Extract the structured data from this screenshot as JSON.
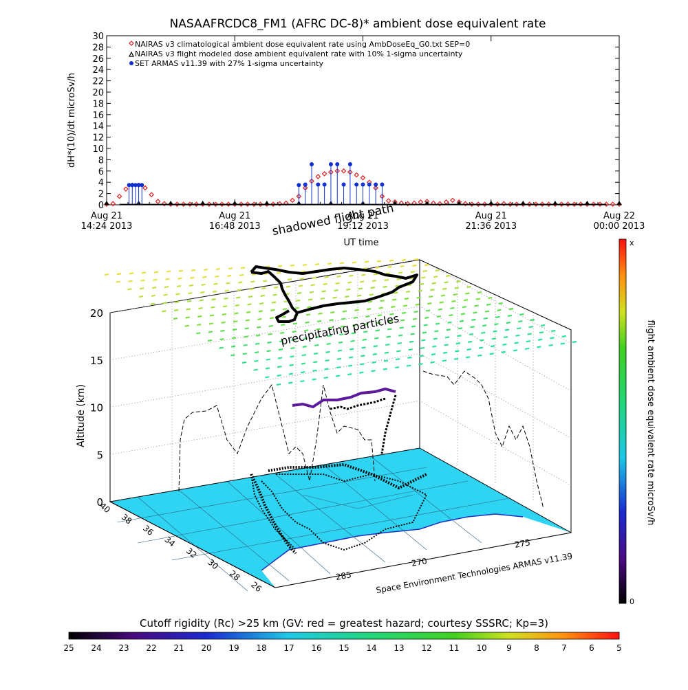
{
  "chart_data": [
    {
      "type": "scatter",
      "title": "NASAAFRCDC8_FM1 (AFRC DC-8)* ambient dose equivalent rate",
      "ylabel": "dH*(10)/dt microSv/h",
      "xlabel": "UT time",
      "ylim": [
        0,
        30
      ],
      "yticks": [
        0,
        2,
        4,
        6,
        8,
        10,
        12,
        14,
        16,
        18,
        20,
        22,
        24,
        26,
        28,
        30
      ],
      "xticks": [
        {
          "top": "Aug 21",
          "bottom": "14:24 2013"
        },
        {
          "top": "Aug 21",
          "bottom": "16:48 2013"
        },
        {
          "top": "Aug 21",
          "bottom": "19:12 2013"
        },
        {
          "top": "Aug 21",
          "bottom": "21:36 2013"
        },
        {
          "top": "Aug 22",
          "bottom": "00:00 2013"
        }
      ],
      "legend_placement": "top-left",
      "series": [
        {
          "name": "NAIRAS v3 climatological ambient dose equivalent rate using AmbDoseEq_G0.txt SEP=0",
          "marker": "diamond",
          "color": "#e02020",
          "x": [
            0.0,
            0.1,
            0.2,
            0.3,
            0.4,
            0.5,
            0.6,
            0.7,
            0.8,
            0.9,
            1.0,
            1.1,
            1.2,
            1.3,
            1.4,
            1.5,
            1.6,
            1.7,
            1.8,
            1.9,
            2.0,
            2.1,
            2.2,
            2.3,
            2.4,
            2.5,
            2.6,
            2.7,
            2.8,
            2.9,
            3.0,
            3.1,
            3.2,
            3.3,
            3.4,
            3.5,
            3.6,
            3.7,
            3.8,
            3.9,
            4.0,
            4.1,
            4.2,
            4.3,
            4.4,
            4.5,
            4.6,
            4.7,
            4.8,
            4.9,
            5.0,
            5.1,
            5.2,
            5.3,
            5.4,
            5.5,
            5.6,
            5.7,
            5.8,
            5.9,
            6.0,
            6.1,
            6.2,
            6.3,
            6.4,
            6.5,
            6.6,
            6.7,
            6.8,
            6.9,
            7.0,
            7.1,
            7.2,
            7.3,
            7.4,
            7.5,
            7.6,
            7.7,
            7.8,
            7.9,
            8.0
          ],
          "y": [
            0.1,
            0.2,
            1.5,
            2.8,
            3.5,
            3.5,
            3.0,
            1.8,
            0.6,
            0.2,
            0.1,
            0.1,
            0.1,
            0.1,
            0.1,
            0.1,
            0.1,
            0.1,
            0.1,
            0.1,
            0.1,
            0.1,
            0.1,
            0.1,
            0.1,
            0.1,
            0.1,
            0.2,
            0.3,
            0.8,
            1.5,
            3.0,
            4.2,
            5.0,
            5.5,
            5.8,
            6.0,
            6.0,
            5.8,
            5.3,
            4.8,
            4.0,
            3.0,
            1.5,
            0.7,
            0.5,
            0.3,
            0.2,
            0.3,
            0.5,
            0.6,
            0.3,
            0.2,
            0.5,
            0.8,
            0.5,
            0.2,
            0.1,
            0.1,
            0.1,
            0.1,
            0.1,
            0.2,
            0.1,
            0.1,
            0.1,
            0.1,
            0.1,
            0.1,
            0.1,
            0.1,
            0.1,
            0.1,
            0.1,
            0.1,
            0.1,
            0.1,
            0.1,
            0.1,
            0.1,
            0.1
          ]
        },
        {
          "name": "NAIRAS v3 flight modeled dose ambient equivalent rate with 10% 1-sigma uncertainty",
          "marker": "triangle",
          "color": "#000000",
          "x": [
            0.0,
            0.5,
            1.0,
            1.5,
            2.0,
            2.5,
            3.0,
            3.5,
            4.0,
            4.5,
            5.0,
            5.5,
            6.0,
            6.5,
            7.0,
            7.5,
            8.0
          ],
          "y": [
            0.0,
            0.0,
            0.0,
            0.0,
            0.0,
            0.0,
            0.0,
            0.0,
            0.0,
            0.0,
            0.0,
            0.0,
            0.0,
            0.0,
            0.0,
            0.0,
            0.0
          ]
        },
        {
          "name": "SET ARMAS v11.39 with 27% 1-sigma uncertainty",
          "marker": "circle",
          "color": "#1030d0",
          "x": [
            0.35,
            0.4,
            0.45,
            0.5,
            0.55,
            3.0,
            3.1,
            3.2,
            3.3,
            3.4,
            3.5,
            3.6,
            3.7,
            3.8,
            3.9,
            4.0,
            4.1,
            4.2,
            4.3
          ],
          "y": [
            3.5,
            3.5,
            3.5,
            3.5,
            3.5,
            3.5,
            3.6,
            7.2,
            3.6,
            3.6,
            7.2,
            7.2,
            3.6,
            7.2,
            3.6,
            3.6,
            3.6,
            3.6,
            3.6
          ]
        }
      ]
    },
    {
      "type": "scatter",
      "title": "shadowed flight path",
      "zlabel": "Altitude (km)",
      "zticks": [
        "0",
        "5",
        "10",
        "15",
        "20"
      ],
      "lat_ticks": [
        "40",
        "38",
        "36",
        "34",
        "32",
        "30",
        "28",
        "26"
      ],
      "lon_ticks": [
        "285",
        "270",
        "275"
      ],
      "annotations": [
        "precipitating particles",
        "Space Environment Technologies ARMAS v11.39"
      ],
      "colorbar_label": "flight ambient dose equivalent rate microSv/h",
      "colorbar_top": "x",
      "colorbar_bottom": "0"
    },
    {
      "type": "heatmap",
      "title": "Cutoff rigidity (Rc) >25 km (GV: red = greatest hazard; courtesy SSSRC; Kp=3)",
      "colorbar_ticks": [
        "25",
        "24",
        "23",
        "22",
        "21",
        "20",
        "19",
        "18",
        "17",
        "16",
        "15",
        "14",
        "13",
        "12",
        "11",
        "10",
        "9",
        "8",
        "7",
        "6",
        "5"
      ]
    }
  ]
}
